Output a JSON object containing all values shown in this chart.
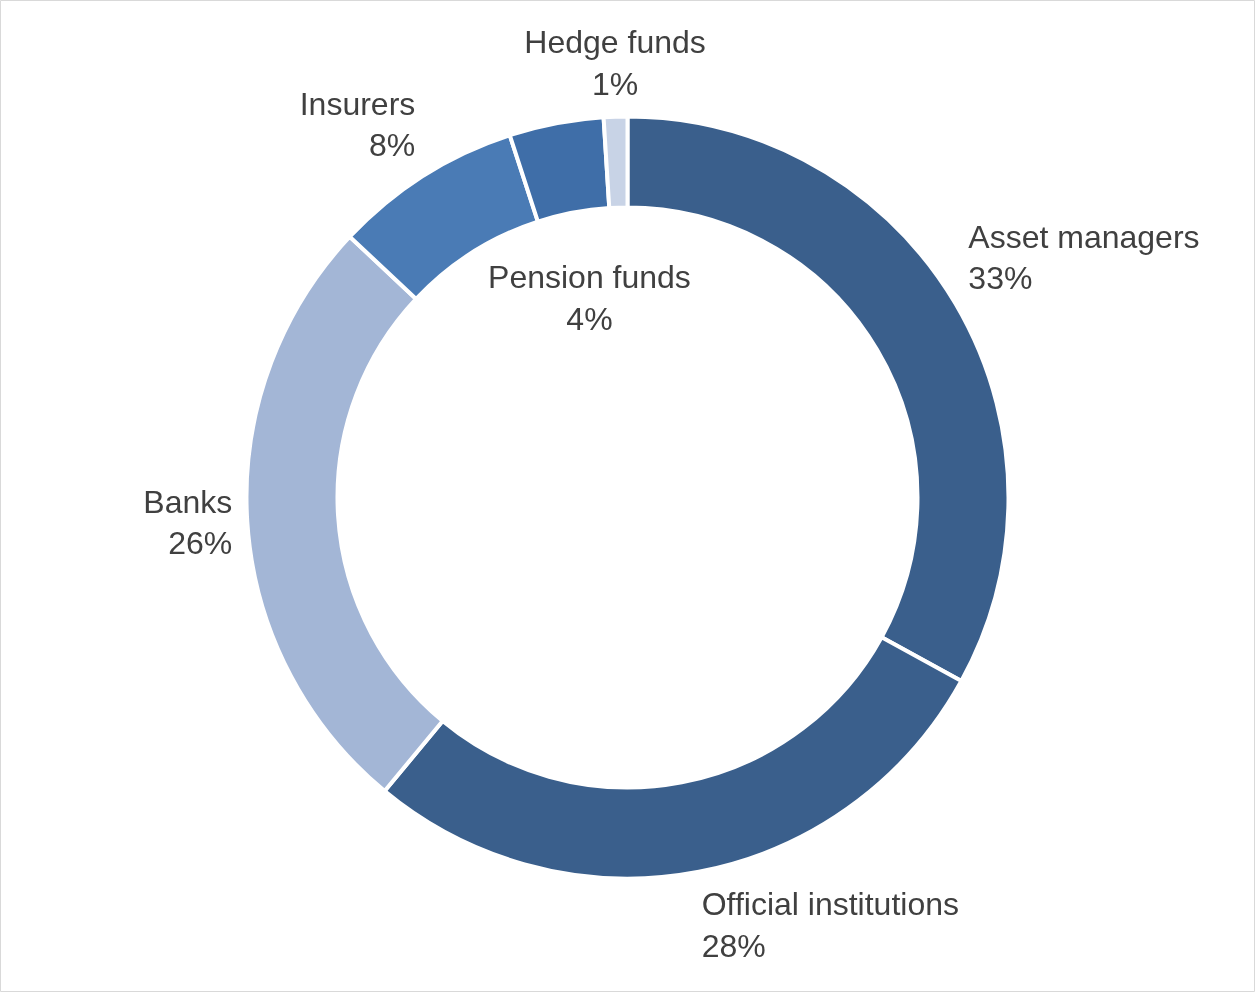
{
  "chart_data": {
    "type": "donut",
    "categories": [
      "Asset managers",
      "Official institutions",
      "Banks",
      "Insurers",
      "Pension funds",
      "Hedge funds"
    ],
    "values": [
      33,
      28,
      26,
      8,
      4,
      1
    ],
    "colors": [
      "#3a5f8c",
      "#3a5f8c",
      "#a3b6d6",
      "#4a7bb5",
      "#3f6ea8",
      "#c8d3e6"
    ],
    "value_labels": [
      "33%",
      "28%",
      "26%",
      "8%",
      "4%",
      "1%"
    ],
    "legend": false
  }
}
